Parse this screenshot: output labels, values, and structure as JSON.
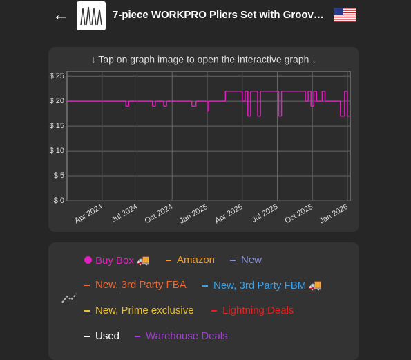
{
  "header": {
    "title": "7-piece WORKPRO Pliers Set with Groov…"
  },
  "chart_data": {
    "type": "line",
    "subtitle": "↓ Tap on graph image to open the interactive graph ↓",
    "xlim": [
      2024.0,
      2026.02
    ],
    "ylim": [
      0,
      26
    ],
    "xticks": [
      {
        "value": 2024.25,
        "label": "Apr 2024"
      },
      {
        "value": 2024.5,
        "label": "Jul 2024"
      },
      {
        "value": 2024.75,
        "label": "Oct 2024"
      },
      {
        "value": 2025.0,
        "label": "Jan 2025"
      },
      {
        "value": 2025.25,
        "label": "Apr 2025"
      },
      {
        "value": 2025.5,
        "label": "Jul 2025"
      },
      {
        "value": 2025.75,
        "label": "Oct 2025"
      },
      {
        "value": 2026.0,
        "label": "Jan 2026"
      }
    ],
    "yticks": [
      {
        "value": 0,
        "label": "$ 0"
      },
      {
        "value": 5,
        "label": "$ 5"
      },
      {
        "value": 10,
        "label": "$ 10"
      },
      {
        "value": 15,
        "label": "$ 15"
      },
      {
        "value": 20,
        "label": "$ 20"
      },
      {
        "value": 25,
        "label": "$ 25"
      }
    ],
    "grid": true,
    "series": [
      {
        "name": "Buy Box",
        "color": "#e020c0",
        "x": [
          2024.0,
          2024.42,
          2024.44,
          2024.61,
          2024.63,
          2024.69,
          2024.71,
          2024.89,
          2024.92,
          2025.0,
          2025.01,
          2025.13,
          2025.25,
          2025.27,
          2025.29,
          2025.31,
          2025.36,
          2025.38,
          2025.51,
          2025.53,
          2025.7,
          2025.72,
          2025.74,
          2025.76,
          2025.78,
          2025.82,
          2025.84,
          2025.95,
          2025.98,
          2026.0
        ],
        "values": [
          20,
          19,
          20,
          19,
          20,
          19,
          20,
          19,
          20,
          18,
          20,
          22,
          20,
          22,
          17,
          22,
          17,
          22,
          17,
          22,
          20,
          22,
          19,
          22,
          20,
          22,
          20,
          17,
          22,
          17
        ]
      }
    ]
  },
  "legend": [
    {
      "name": "Buy Box 🚚",
      "color": "#e020c0",
      "marker": "dot"
    },
    {
      "name": "Amazon",
      "color": "#f0a030"
    },
    {
      "name": "New",
      "color": "#8890d8"
    },
    {
      "name": "New, 3rd Party FBA",
      "color": "#f06830"
    },
    {
      "name": "New, 3rd Party FBM 🚚",
      "color": "#3aa0e8"
    },
    {
      "name": "New, Prime exclusive",
      "color": "#e8c030"
    },
    {
      "name": "Lightning Deals",
      "color": "#e82020"
    },
    {
      "name": "Used",
      "color": "#ffffff"
    },
    {
      "name": "Warehouse Deals",
      "color": "#a040d0"
    }
  ]
}
